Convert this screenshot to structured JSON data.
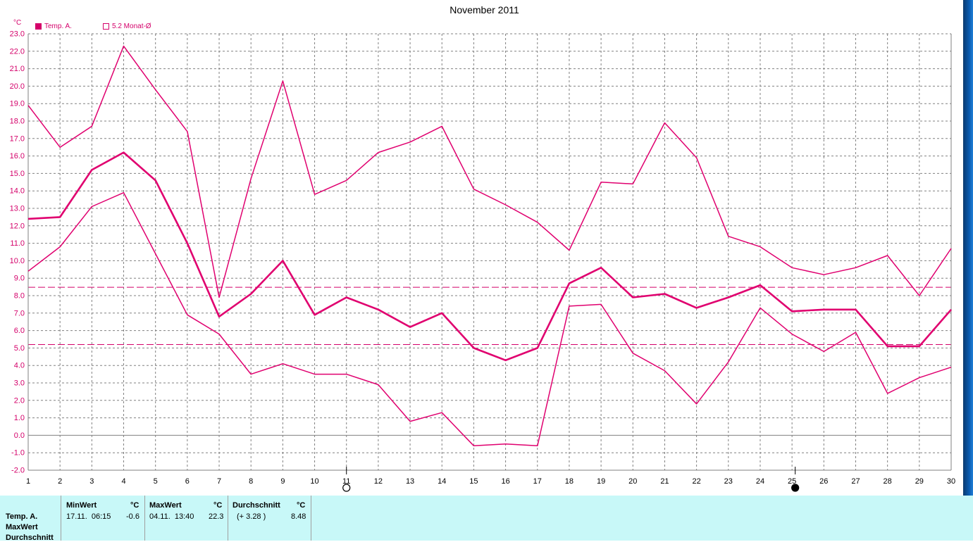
{
  "chart_data": {
    "type": "line",
    "title": "November 2011",
    "ylabel": "°C",
    "x": [
      1,
      2,
      3,
      4,
      5,
      6,
      7,
      8,
      9,
      10,
      11,
      12,
      13,
      14,
      15,
      16,
      17,
      18,
      19,
      20,
      21,
      22,
      23,
      24,
      25,
      26,
      27,
      28,
      29,
      30
    ],
    "ylim": [
      -2.0,
      23.0
    ],
    "ytick_step": 1.0,
    "grid": true,
    "legend": [
      {
        "label": "Temp. A.",
        "style": "filled-square"
      },
      {
        "label": "5.2 Monat-Ø",
        "style": "open-square"
      }
    ],
    "series": [
      {
        "key": "max",
        "width": 1.5,
        "values": [
          18.9,
          16.5,
          17.7,
          22.3,
          19.8,
          17.4,
          7.9,
          14.7,
          20.3,
          13.8,
          14.6,
          16.2,
          16.8,
          17.7,
          14.1,
          13.2,
          12.2,
          10.6,
          14.5,
          14.4,
          17.9,
          15.9,
          11.4,
          10.8,
          9.6,
          9.2,
          9.6,
          10.3,
          8.0,
          10.7
        ]
      },
      {
        "key": "avg",
        "width": 2.6,
        "values": [
          12.4,
          12.5,
          15.2,
          16.2,
          14.6,
          11.0,
          6.8,
          8.1,
          10.0,
          6.9,
          7.9,
          7.2,
          6.2,
          7.0,
          5.0,
          4.3,
          5.0,
          8.7,
          9.6,
          7.9,
          8.1,
          7.3,
          7.9,
          8.6,
          7.1,
          7.2,
          7.2,
          5.1,
          5.1,
          7.2
        ]
      },
      {
        "key": "min",
        "width": 1.5,
        "values": [
          9.4,
          10.8,
          13.1,
          13.9,
          10.4,
          6.9,
          5.8,
          3.5,
          4.1,
          3.5,
          3.5,
          2.9,
          0.8,
          1.3,
          -0.6,
          -0.5,
          -0.6,
          7.4,
          7.5,
          4.7,
          3.7,
          1.8,
          4.2,
          7.3,
          5.8,
          4.8,
          5.9,
          2.4,
          3.3,
          3.9
        ]
      }
    ],
    "reference_lines": [
      {
        "key": "month-avg",
        "value": 5.2
      },
      {
        "key": "overall-avg",
        "value": 8.48
      }
    ],
    "moon_phases": [
      {
        "x": 11,
        "phase": "full-moon"
      },
      {
        "x": 25.1,
        "phase": "new-moon"
      }
    ],
    "colors": {
      "series": "#e0006f",
      "reference": "#d4006a",
      "grid": "#808080",
      "zero_line": "#808080"
    }
  },
  "stats_panel": {
    "row_labels": [
      "Temp. A.",
      "MaxWert",
      "Durchschnitt"
    ],
    "min": {
      "header": "MinWert",
      "unit": "°C",
      "datetime": "17.11.  06:15",
      "value": "-0.6"
    },
    "max": {
      "header": "MaxWert",
      "unit": "°C",
      "datetime": "04.11.  13:40",
      "value": "22.3"
    },
    "avg": {
      "header": "Durchschnitt",
      "unit": "°C",
      "delta": "(+ 3.28 )",
      "value": "8.48"
    }
  }
}
